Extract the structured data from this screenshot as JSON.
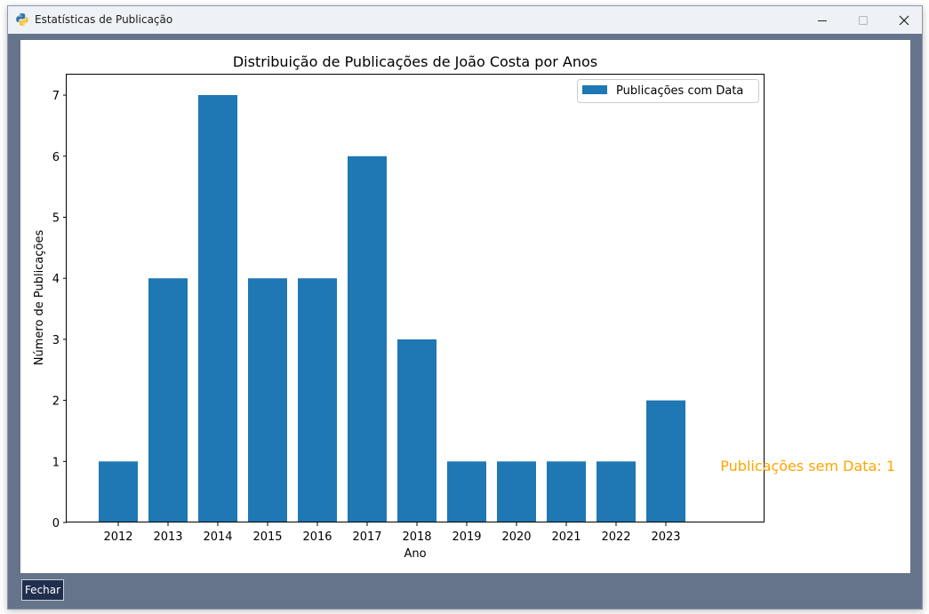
{
  "window": {
    "title": "Estatísticas de Publicação",
    "icon": "python-icon"
  },
  "colors": {
    "bar": "#1f77b4",
    "annotation": "#ffa500",
    "window_frame": "#65748a",
    "close_button_bg": "#1f2f4d"
  },
  "chart_data": {
    "type": "bar",
    "title": "Distribuição de Publicações de João Costa por Anos",
    "xlabel": "Ano",
    "ylabel": "Número de Publicações",
    "categories": [
      "2012",
      "2013",
      "2014",
      "2015",
      "2016",
      "2017",
      "2018",
      "2019",
      "2020",
      "2021",
      "2022",
      "2023"
    ],
    "series": [
      {
        "name": "Publicações com Data",
        "values": [
          1,
          4,
          7,
          4,
          4,
          6,
          3,
          1,
          1,
          1,
          1,
          2
        ]
      }
    ],
    "ylim": [
      0,
      7.35
    ],
    "yticks": [
      0,
      1,
      2,
      3,
      4,
      5,
      6,
      7
    ],
    "grid": false,
    "legend_position": "top-right",
    "annotation": "Publicações sem Data: 1"
  },
  "footer": {
    "close_label": "Fechar"
  }
}
